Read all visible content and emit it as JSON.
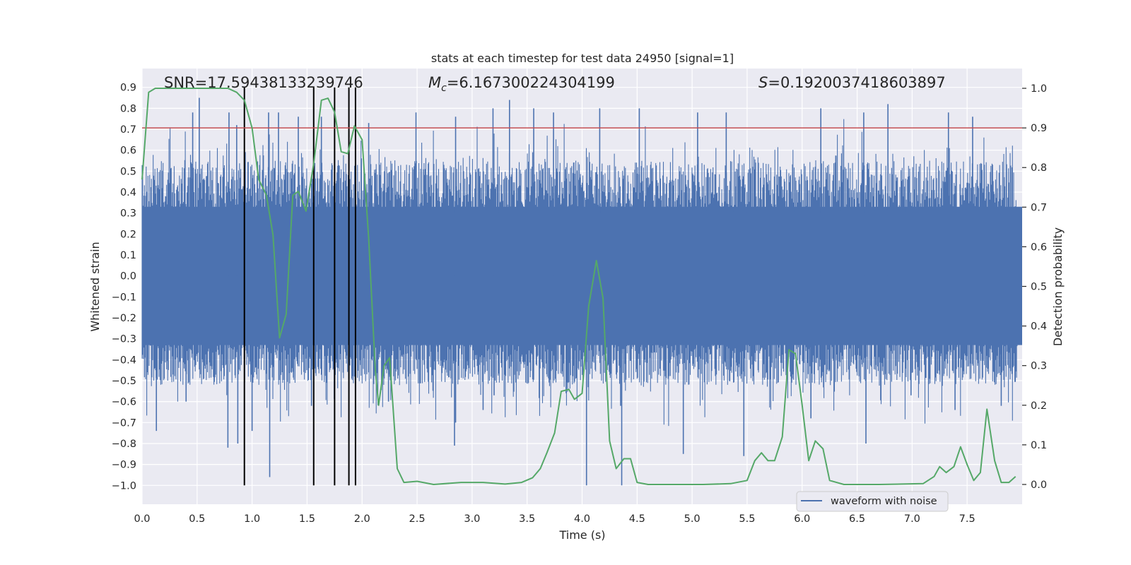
{
  "chart_data": {
    "type": "line",
    "title": "stats at each timestep for test data 24950 [signal=1]",
    "xlabel": "Time (s)",
    "ylabel_left": "Whitened strain",
    "ylabel_right": "Detection probability",
    "xlim": [
      0.0,
      8.0
    ],
    "ylim_left": [
      -1.09,
      0.99
    ],
    "ylim_right": [
      -0.05,
      1.05
    ],
    "x_ticks": [
      "0.0",
      "0.5",
      "1.0",
      "1.5",
      "2.0",
      "2.5",
      "3.0",
      "3.5",
      "4.0",
      "4.5",
      "5.0",
      "5.5",
      "6.0",
      "6.5",
      "7.0",
      "7.5"
    ],
    "y_ticks_left": [
      "0.9",
      "0.8",
      "0.7",
      "0.6",
      "0.5",
      "0.4",
      "0.3",
      "0.2",
      "0.1",
      "0.0",
      "-0.1",
      "-0.2",
      "-0.3",
      "-0.4",
      "-0.5",
      "-0.6",
      "-0.7",
      "-0.8",
      "-0.9",
      "-1.0"
    ],
    "y_ticks_right": [
      "1.0",
      "0.9",
      "0.8",
      "0.7",
      "0.6",
      "0.5",
      "0.4",
      "0.3",
      "0.2",
      "0.1",
      "0.0"
    ],
    "annotations": {
      "snr": "SNR=17.59438133239746",
      "mc_symbol": "M",
      "mc_sub": "c",
      "mc_value": "=6.167300224304199",
      "s_symbol": "S",
      "s_value": "=0.1920037418603897"
    },
    "legend": {
      "label": "waveform with noise",
      "placement": "lower-right"
    },
    "threshold": {
      "value": 0.9,
      "axis": "right",
      "color": "#c44e52"
    },
    "vertical_markers": [
      0.93,
      1.56,
      1.75,
      1.88,
      1.94
    ],
    "waveform": {
      "name": "waveform with noise",
      "color": "#4c72b0",
      "core_band": [
        -0.33,
        0.33
      ],
      "peaks": [
        {
          "t": 0.46,
          "v": 0.78
        },
        {
          "t": 0.52,
          "v": 0.85
        },
        {
          "t": 0.79,
          "v": 0.78
        },
        {
          "t": 0.86,
          "v": 0.72
        },
        {
          "t": 1.15,
          "v": 0.78
        },
        {
          "t": 1.24,
          "v": 0.78
        },
        {
          "t": 1.42,
          "v": 0.76
        },
        {
          "t": 1.63,
          "v": 0.76
        },
        {
          "t": 2.06,
          "v": 0.73
        },
        {
          "t": 2.49,
          "v": 0.78
        },
        {
          "t": 2.85,
          "v": 0.76
        },
        {
          "t": 3.19,
          "v": 0.8
        },
        {
          "t": 3.34,
          "v": 0.84
        },
        {
          "t": 3.56,
          "v": 0.8
        },
        {
          "t": 3.74,
          "v": 0.78
        },
        {
          "t": 4.16,
          "v": 0.8
        },
        {
          "t": 4.52,
          "v": 0.8
        },
        {
          "t": 5.05,
          "v": 0.78
        },
        {
          "t": 5.31,
          "v": 0.78
        },
        {
          "t": 6.17,
          "v": 0.8
        },
        {
          "t": 6.56,
          "v": 0.78
        },
        {
          "t": 6.78,
          "v": 0.82
        },
        {
          "t": 7.33,
          "v": 0.78
        },
        {
          "t": 7.55,
          "v": 0.76
        }
      ],
      "troughs": [
        {
          "t": 0.13,
          "v": -0.74
        },
        {
          "t": 0.4,
          "v": -0.6
        },
        {
          "t": 0.78,
          "v": -0.82
        },
        {
          "t": 0.87,
          "v": -0.8
        },
        {
          "t": 1.0,
          "v": -0.74
        },
        {
          "t": 1.16,
          "v": -0.96
        },
        {
          "t": 1.54,
          "v": -0.62
        },
        {
          "t": 2.24,
          "v": -0.6
        },
        {
          "t": 2.85,
          "v": -0.7
        },
        {
          "t": 2.84,
          "v": -0.81
        },
        {
          "t": 3.1,
          "v": -0.64
        },
        {
          "t": 3.2,
          "v": -0.57
        },
        {
          "t": 4.04,
          "v": -1.0
        },
        {
          "t": 4.36,
          "v": -1.0
        },
        {
          "t": 4.35,
          "v": -0.62
        },
        {
          "t": 4.92,
          "v": -0.85
        },
        {
          "t": 5.47,
          "v": -0.86
        },
        {
          "t": 6.08,
          "v": -0.68
        },
        {
          "t": 6.58,
          "v": -0.8
        },
        {
          "t": 6.99,
          "v": -0.57
        },
        {
          "t": 7.39,
          "v": -0.64
        },
        {
          "t": 7.81,
          "v": -0.62
        }
      ]
    },
    "probability": {
      "name": "detection probability",
      "color": "#55a868",
      "axis": "right",
      "points": [
        [
          0.0,
          0.77
        ],
        [
          0.06,
          0.99
        ],
        [
          0.12,
          1.0
        ],
        [
          0.3,
          1.0
        ],
        [
          0.6,
          1.0
        ],
        [
          0.78,
          1.0
        ],
        [
          0.86,
          0.99
        ],
        [
          0.93,
          0.97
        ],
        [
          1.0,
          0.9
        ],
        [
          1.06,
          0.77
        ],
        [
          1.13,
          0.73
        ],
        [
          1.19,
          0.63
        ],
        [
          1.25,
          0.37
        ],
        [
          1.31,
          0.43
        ],
        [
          1.37,
          0.73
        ],
        [
          1.42,
          0.74
        ],
        [
          1.49,
          0.69
        ],
        [
          1.56,
          0.81
        ],
        [
          1.63,
          0.97
        ],
        [
          1.69,
          0.975
        ],
        [
          1.75,
          0.94
        ],
        [
          1.81,
          0.84
        ],
        [
          1.87,
          0.835
        ],
        [
          1.93,
          0.905
        ],
        [
          2.0,
          0.87
        ],
        [
          2.06,
          0.62
        ],
        [
          2.12,
          0.29
        ],
        [
          2.15,
          0.2
        ],
        [
          2.2,
          0.3
        ],
        [
          2.25,
          0.32
        ],
        [
          2.32,
          0.04
        ],
        [
          2.38,
          0.005
        ],
        [
          2.5,
          0.008
        ],
        [
          2.65,
          0.0
        ],
        [
          2.9,
          0.005
        ],
        [
          3.1,
          0.005
        ],
        [
          3.3,
          0.001
        ],
        [
          3.45,
          0.005
        ],
        [
          3.55,
          0.017
        ],
        [
          3.62,
          0.04
        ],
        [
          3.68,
          0.08
        ],
        [
          3.75,
          0.13
        ],
        [
          3.81,
          0.235
        ],
        [
          3.88,
          0.24
        ],
        [
          3.93,
          0.215
        ],
        [
          4.0,
          0.23
        ],
        [
          4.06,
          0.45
        ],
        [
          4.13,
          0.565
        ],
        [
          4.19,
          0.47
        ],
        [
          4.25,
          0.11
        ],
        [
          4.31,
          0.04
        ],
        [
          4.38,
          0.065
        ],
        [
          4.44,
          0.065
        ],
        [
          4.5,
          0.005
        ],
        [
          4.6,
          0.0
        ],
        [
          4.8,
          0.0
        ],
        [
          5.1,
          0.0
        ],
        [
          5.35,
          0.002
        ],
        [
          5.5,
          0.01
        ],
        [
          5.57,
          0.06
        ],
        [
          5.63,
          0.08
        ],
        [
          5.69,
          0.06
        ],
        [
          5.75,
          0.06
        ],
        [
          5.82,
          0.12
        ],
        [
          5.88,
          0.34
        ],
        [
          5.94,
          0.33
        ],
        [
          6.0,
          0.2
        ],
        [
          6.06,
          0.06
        ],
        [
          6.12,
          0.11
        ],
        [
          6.19,
          0.09
        ],
        [
          6.25,
          0.01
        ],
        [
          6.38,
          0.0
        ],
        [
          6.7,
          0.0
        ],
        [
          7.1,
          0.002
        ],
        [
          7.2,
          0.02
        ],
        [
          7.25,
          0.045
        ],
        [
          7.31,
          0.03
        ],
        [
          7.38,
          0.045
        ],
        [
          7.44,
          0.095
        ],
        [
          7.5,
          0.05
        ],
        [
          7.56,
          0.01
        ],
        [
          7.62,
          0.03
        ],
        [
          7.68,
          0.19
        ],
        [
          7.75,
          0.06
        ],
        [
          7.81,
          0.005
        ],
        [
          7.88,
          0.005
        ],
        [
          7.94,
          0.02
        ]
      ]
    }
  }
}
